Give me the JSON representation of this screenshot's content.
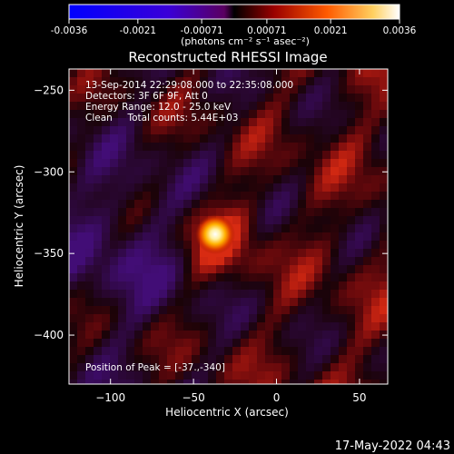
{
  "colorbar": {
    "tick_labels": [
      "-0.0036",
      "-0.0021",
      "-0.00071",
      "0.00071",
      "0.0021",
      "0.0036"
    ],
    "tick_values": [
      -0.0036,
      -0.0021,
      -0.00071,
      0.00071,
      0.0021,
      0.0036
    ],
    "range": [
      -0.0036,
      0.0036
    ],
    "unit_label": "(photons cm⁻² s⁻¹ asec⁻²)"
  },
  "chart_data": {
    "type": "heatmap",
    "title": "Reconstructed RHESSI Image",
    "xlabel": "Heliocentric X (arcsec)",
    "ylabel": "Heliocentric Y (arcsec)",
    "xlim": [
      -125,
      67
    ],
    "ylim": [
      -430,
      -237
    ],
    "x_ticks": [
      -100,
      -50,
      0,
      50
    ],
    "x_tick_labels": [
      "−100",
      "−50",
      "0",
      "50"
    ],
    "y_ticks": [
      -250,
      -300,
      -350,
      -400
    ],
    "y_tick_labels": [
      "−250",
      "−300",
      "−350",
      "−400"
    ],
    "peak_position": [
      -37,
      -340
    ],
    "annotations": [
      "13-Sep-2014 22:29:08.000 to 22:35:08.000",
      "Detectors: 3F 6F 9F, Att 0",
      "Energy Range: 12.0 - 25.0 keV",
      "Clean     Total counts: 5.44E+03"
    ],
    "peak_label": "Position of Peak = [-37.,-340]",
    "grid": false
  },
  "timestamp": "17-May-2022 04:43"
}
